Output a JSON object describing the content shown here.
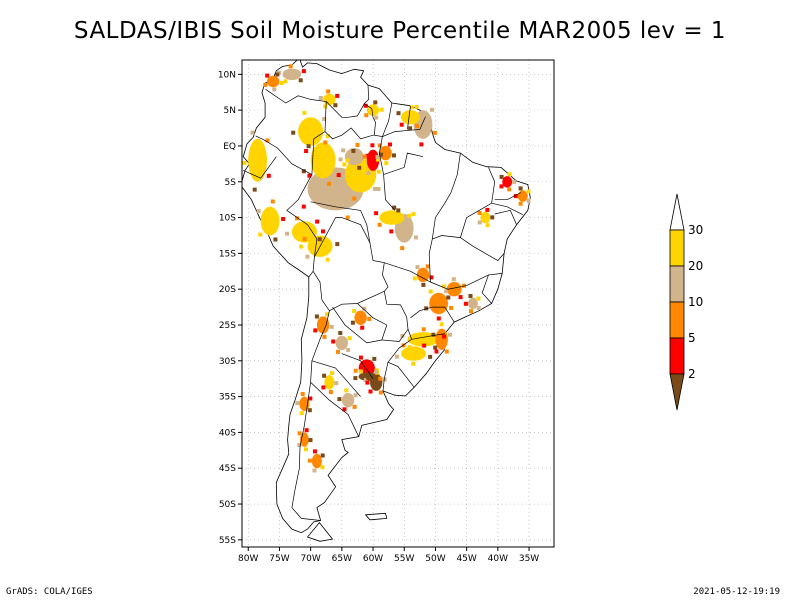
{
  "title": "SALDAS/IBIS Soil Moisture Percentile MAR2005 lev = 1",
  "footer": {
    "left": "GrADS: COLA/IGES",
    "right": "2021-05-12-19:19"
  },
  "map": {
    "lon_range": [
      -81,
      -31
    ],
    "lat_range": [
      -56,
      12
    ],
    "lon_ticks": [
      {
        "v": -80,
        "label": "80W"
      },
      {
        "v": -75,
        "label": "75W"
      },
      {
        "v": -70,
        "label": "70W"
      },
      {
        "v": -65,
        "label": "65W"
      },
      {
        "v": -60,
        "label": "60W"
      },
      {
        "v": -55,
        "label": "55W"
      },
      {
        "v": -50,
        "label": "50W"
      },
      {
        "v": -45,
        "label": "45W"
      },
      {
        "v": -40,
        "label": "40W"
      },
      {
        "v": -35,
        "label": "35W"
      }
    ],
    "lat_ticks": [
      {
        "v": 10,
        "label": "10N"
      },
      {
        "v": 5,
        "label": "5N"
      },
      {
        "v": 0,
        "label": "EQ"
      },
      {
        "v": -5,
        "label": "5S"
      },
      {
        "v": -10,
        "label": "10S"
      },
      {
        "v": -15,
        "label": "15S"
      },
      {
        "v": -20,
        "label": "20S"
      },
      {
        "v": -25,
        "label": "25S"
      },
      {
        "v": -30,
        "label": "30S"
      },
      {
        "v": -35,
        "label": "35S"
      },
      {
        "v": -40,
        "label": "40S"
      },
      {
        "v": -45,
        "label": "45S"
      },
      {
        "v": -50,
        "label": "50S"
      },
      {
        "v": -55,
        "label": "55S"
      }
    ],
    "grid": true,
    "colorbar": {
      "placement": "right",
      "bins": [
        {
          "color": "#7a4a1a"
        },
        {
          "color": "#ff0000"
        },
        {
          "color": "#ff8800"
        },
        {
          "color": "#d2b48c"
        },
        {
          "color": "#ffd400"
        },
        {
          "color": "#ffffff"
        }
      ],
      "labels": [
        "2",
        "5",
        "10",
        "20",
        "30"
      ]
    },
    "patches": [
      {
        "lon": -66,
        "lat": -6,
        "rx": 4.5,
        "ry": 3,
        "cat": 3
      },
      {
        "lon": -62,
        "lat": -4,
        "rx": 2.5,
        "ry": 2.5,
        "cat": 4
      },
      {
        "lon": -68,
        "lat": -2,
        "rx": 2,
        "ry": 2.5,
        "cat": 4
      },
      {
        "lon": -70,
        "lat": 2,
        "rx": 2,
        "ry": 2,
        "cat": 4
      },
      {
        "lon": -63,
        "lat": -1.5,
        "rx": 1.5,
        "ry": 1.2,
        "cat": 3
      },
      {
        "lon": -78.5,
        "lat": -2,
        "rx": 1.5,
        "ry": 3,
        "cat": 4
      },
      {
        "lon": -76.5,
        "lat": -10.5,
        "rx": 1.5,
        "ry": 2,
        "cat": 4
      },
      {
        "lon": -71,
        "lat": -12,
        "rx": 2,
        "ry": 1.5,
        "cat": 4
      },
      {
        "lon": -68.5,
        "lat": -14,
        "rx": 2,
        "ry": 1.5,
        "cat": 4
      },
      {
        "lon": -55,
        "lat": -11.5,
        "rx": 1.5,
        "ry": 2,
        "cat": 3
      },
      {
        "lon": -57,
        "lat": -10,
        "rx": 2,
        "ry": 1,
        "cat": 4
      },
      {
        "lon": -52,
        "lat": 3,
        "rx": 1.5,
        "ry": 2,
        "cat": 3
      },
      {
        "lon": -54,
        "lat": 4,
        "rx": 1.5,
        "ry": 1,
        "cat": 4
      },
      {
        "lon": -61,
        "lat": -31,
        "rx": 1.3,
        "ry": 1.2,
        "cat": 1
      },
      {
        "lon": -59.5,
        "lat": -33,
        "rx": 1,
        "ry": 1.2,
        "cat": 0
      },
      {
        "lon": -60.8,
        "lat": -32.2,
        "rx": 1.5,
        "ry": 0.6,
        "cat": 0
      },
      {
        "lon": -52,
        "lat": -27,
        "rx": 2.5,
        "ry": 1,
        "cat": 4
      },
      {
        "lon": -53.5,
        "lat": -29,
        "rx": 2,
        "ry": 1,
        "cat": 4
      },
      {
        "lon": -49,
        "lat": -27,
        "rx": 1,
        "ry": 1.5,
        "cat": 2
      },
      {
        "lon": -49.5,
        "lat": -22,
        "rx": 1.5,
        "ry": 1.5,
        "cat": 2
      },
      {
        "lon": -47,
        "lat": -20,
        "rx": 1.2,
        "ry": 1,
        "cat": 2
      },
      {
        "lon": -52,
        "lat": -18,
        "rx": 1,
        "ry": 1,
        "cat": 2
      },
      {
        "lon": -60,
        "lat": -2,
        "rx": 1,
        "ry": 1.5,
        "cat": 1
      },
      {
        "lon": -58,
        "lat": -1,
        "rx": 1,
        "ry": 1,
        "cat": 2
      },
      {
        "lon": -73,
        "lat": 10,
        "rx": 1.5,
        "ry": 0.8,
        "cat": 3
      },
      {
        "lon": -76,
        "lat": 9,
        "rx": 1,
        "ry": 0.8,
        "cat": 2
      },
      {
        "lon": -67,
        "lat": 6.5,
        "rx": 1,
        "ry": 0.8,
        "cat": 4
      },
      {
        "lon": -68,
        "lat": -25,
        "rx": 1,
        "ry": 1.2,
        "cat": 2
      },
      {
        "lon": -65,
        "lat": -27.5,
        "rx": 1,
        "ry": 1,
        "cat": 3
      },
      {
        "lon": -62,
        "lat": -24,
        "rx": 1,
        "ry": 1,
        "cat": 2
      },
      {
        "lon": -64,
        "lat": -35.5,
        "rx": 1,
        "ry": 1,
        "cat": 3
      },
      {
        "lon": -67,
        "lat": -33,
        "rx": 0.8,
        "ry": 1,
        "cat": 4
      },
      {
        "lon": -71,
        "lat": -36,
        "rx": 0.8,
        "ry": 1,
        "cat": 2
      },
      {
        "lon": -71,
        "lat": -41,
        "rx": 0.7,
        "ry": 1,
        "cat": 2
      },
      {
        "lon": -69,
        "lat": -44,
        "rx": 0.8,
        "ry": 1,
        "cat": 2
      },
      {
        "lon": -38.5,
        "lat": -5,
        "rx": 0.8,
        "ry": 0.8,
        "cat": 1
      },
      {
        "lon": -36,
        "lat": -7,
        "rx": 0.8,
        "ry": 0.8,
        "cat": 2
      },
      {
        "lon": -42,
        "lat": -10,
        "rx": 0.8,
        "ry": 0.8,
        "cat": 4
      },
      {
        "lon": -44,
        "lat": -22,
        "rx": 0.8,
        "ry": 0.8,
        "cat": 3
      },
      {
        "lon": -60,
        "lat": 5,
        "rx": 1,
        "ry": 0.8,
        "cat": 4
      }
    ]
  }
}
